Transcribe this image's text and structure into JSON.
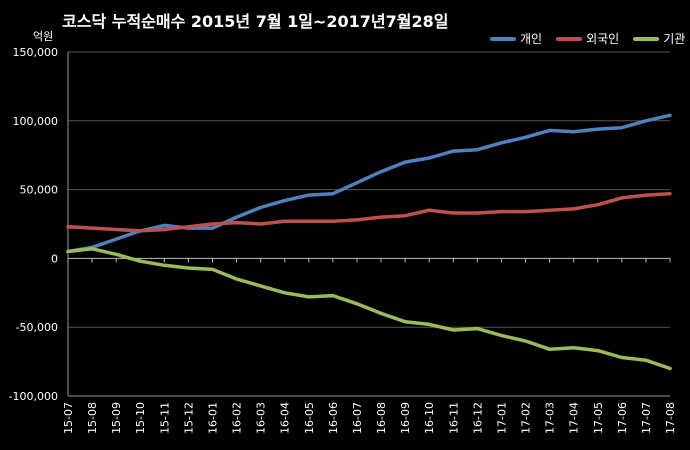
{
  "chart_data": {
    "type": "line",
    "title": "코스닥  누적순매수 2015년 7월 1일~2017년7월28일",
    "ylabel": "억원",
    "ylim": [
      -100000,
      150000
    ],
    "yticks": [
      "150,000",
      "100,000",
      "50,000",
      "0",
      "-50,000",
      "-100,000"
    ],
    "ytick_values": [
      150000,
      100000,
      50000,
      0,
      -50000,
      -100000
    ],
    "grid": true,
    "legend_position": "top-right",
    "categories": [
      "15-07",
      "15-08",
      "15-09",
      "15-10",
      "15-11",
      "15-12",
      "16-01",
      "16-02",
      "16-03",
      "16-04",
      "16-05",
      "16-06",
      "16-07",
      "16-08",
      "16-09",
      "16-10",
      "16-11",
      "16-12",
      "17-01",
      "17-02",
      "17-03",
      "17-04",
      "17-05",
      "17-06",
      "17-07",
      "17-08"
    ],
    "series": [
      {
        "name": "개인",
        "color": "#4f81bd",
        "values": [
          5000,
          8000,
          14000,
          20000,
          24000,
          22000,
          22000,
          30000,
          37000,
          42000,
          46000,
          47000,
          55000,
          63000,
          70000,
          73000,
          78000,
          79000,
          84000,
          88000,
          93000,
          92000,
          94000,
          95000,
          100000,
          104000
        ]
      },
      {
        "name": "외국인",
        "color": "#c0504d",
        "values": [
          23000,
          22000,
          21000,
          20000,
          21000,
          23000,
          25000,
          26000,
          25000,
          27000,
          27000,
          27000,
          28000,
          30000,
          31000,
          35000,
          33000,
          33000,
          34000,
          34000,
          35000,
          36000,
          39000,
          44000,
          46000,
          47000
        ]
      },
      {
        "name": "기관",
        "color": "#9bbb59",
        "values": [
          5000,
          7000,
          3000,
          -2000,
          -5000,
          -7000,
          -8000,
          -15000,
          -20000,
          -25000,
          -28000,
          -27000,
          -33000,
          -40000,
          -46000,
          -48000,
          -52000,
          -51000,
          -56000,
          -60000,
          -66000,
          -65000,
          -67000,
          -72000,
          -74000,
          -80000
        ]
      }
    ]
  }
}
